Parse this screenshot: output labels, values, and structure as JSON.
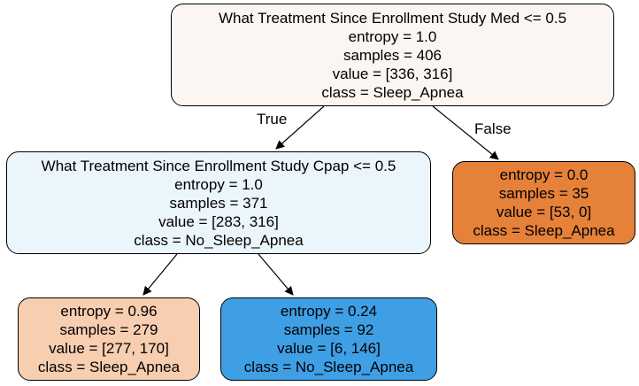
{
  "colors": {
    "root": "#fcf6f2",
    "left_child": "#ebf5fc",
    "right_leaf": "#e58139",
    "left_left_leaf": "#f7ceaf",
    "left_right_leaf": "#3f9fe5",
    "edge": "#000000"
  },
  "edge_labels": {
    "true_label": "True",
    "false_label": "False"
  },
  "nodes": {
    "root": {
      "condition": "What Treatment Since Enrollment Study Med <= 0.5",
      "entropy": "entropy = 1.0",
      "samples": "samples = 406",
      "value": "value = [336, 316]",
      "class": "class = Sleep_Apnea"
    },
    "left": {
      "condition": "What Treatment Since Enrollment Study Cpap <= 0.5",
      "entropy": "entropy = 1.0",
      "samples": "samples = 371",
      "value": "value = [283, 316]",
      "class": "class = No_Sleep_Apnea"
    },
    "right": {
      "entropy": "entropy = 0.0",
      "samples": "samples = 35",
      "value": "value = [53, 0]",
      "class": "class = Sleep_Apnea"
    },
    "left_left": {
      "entropy": "entropy = 0.96",
      "samples": "samples = 279",
      "value": "value = [277, 170]",
      "class": "class = Sleep_Apnea"
    },
    "left_right": {
      "entropy": "entropy = 0.24",
      "samples": "samples = 92",
      "value": "value = [6, 146]",
      "class": "class = No_Sleep_Apnea"
    }
  }
}
